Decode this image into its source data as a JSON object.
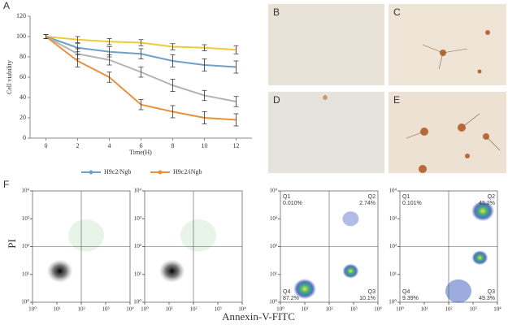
{
  "panel_labels": [
    "A",
    "B",
    "C",
    "D",
    "E",
    "F"
  ],
  "chart_data": {
    "type": "line",
    "xlabel": "Time(H)",
    "ylabel": "Cell viability",
    "x": [
      0,
      2,
      4,
      6,
      8,
      10,
      12
    ],
    "xlim": [
      -1,
      13
    ],
    "xticks": [
      0,
      2,
      4,
      6,
      8,
      10,
      12
    ],
    "ylim": [
      0,
      120
    ],
    "yticks": [
      0,
      20,
      40,
      60,
      80,
      100,
      120
    ],
    "series": [
      {
        "color": "#f2c935",
        "values": [
          100,
          97,
          95,
          94,
          90,
          89,
          87
        ],
        "errors": [
          2,
          3,
          3,
          3,
          3,
          3,
          4
        ]
      },
      {
        "name": "H9c2/Ngb",
        "color": "#6fa0c8",
        "values": [
          100,
          89,
          85,
          83,
          76,
          72,
          70
        ],
        "errors": [
          2,
          4,
          5,
          5,
          6,
          6,
          6
        ]
      },
      {
        "color": "#b4b4b4",
        "values": [
          100,
          83,
          77,
          65,
          52,
          42,
          36
        ],
        "errors": [
          2,
          5,
          5,
          5,
          6,
          5,
          5
        ]
      },
      {
        "name": "H9c2/iNgb",
        "color": "#e8923a",
        "values": [
          100,
          76,
          60,
          33,
          26,
          20,
          18
        ],
        "errors": [
          2,
          6,
          5,
          5,
          6,
          6,
          6
        ]
      }
    ]
  },
  "flow": {
    "xlabel": "Annexin-V-FITC",
    "ylabel": "PI",
    "ticks": [
      {
        "value": 0,
        "label": "10⁰"
      },
      {
        "value": 1,
        "label": "10¹"
      },
      {
        "value": 2,
        "label": "10²"
      },
      {
        "value": 3,
        "label": "10³"
      },
      {
        "value": 4,
        "label": "10⁴"
      }
    ],
    "plots": [
      {
        "quadrants": []
      },
      {
        "quadrants": []
      },
      {
        "quadrants": [
          {
            "name": "Q1",
            "value": "0.010%"
          },
          {
            "name": "Q2",
            "value": "2.74%"
          },
          {
            "name": "Q3",
            "value": "10.1%"
          },
          {
            "name": "Q4",
            "value": "87.2%"
          }
        ]
      },
      {
        "quadrants": [
          {
            "name": "Q1",
            "value": "0.101%"
          },
          {
            "name": "Q2",
            "value": "41.2%"
          },
          {
            "name": "Q3",
            "value": "49.3%"
          },
          {
            "name": "Q4",
            "value": "9.39%"
          }
        ]
      }
    ]
  }
}
